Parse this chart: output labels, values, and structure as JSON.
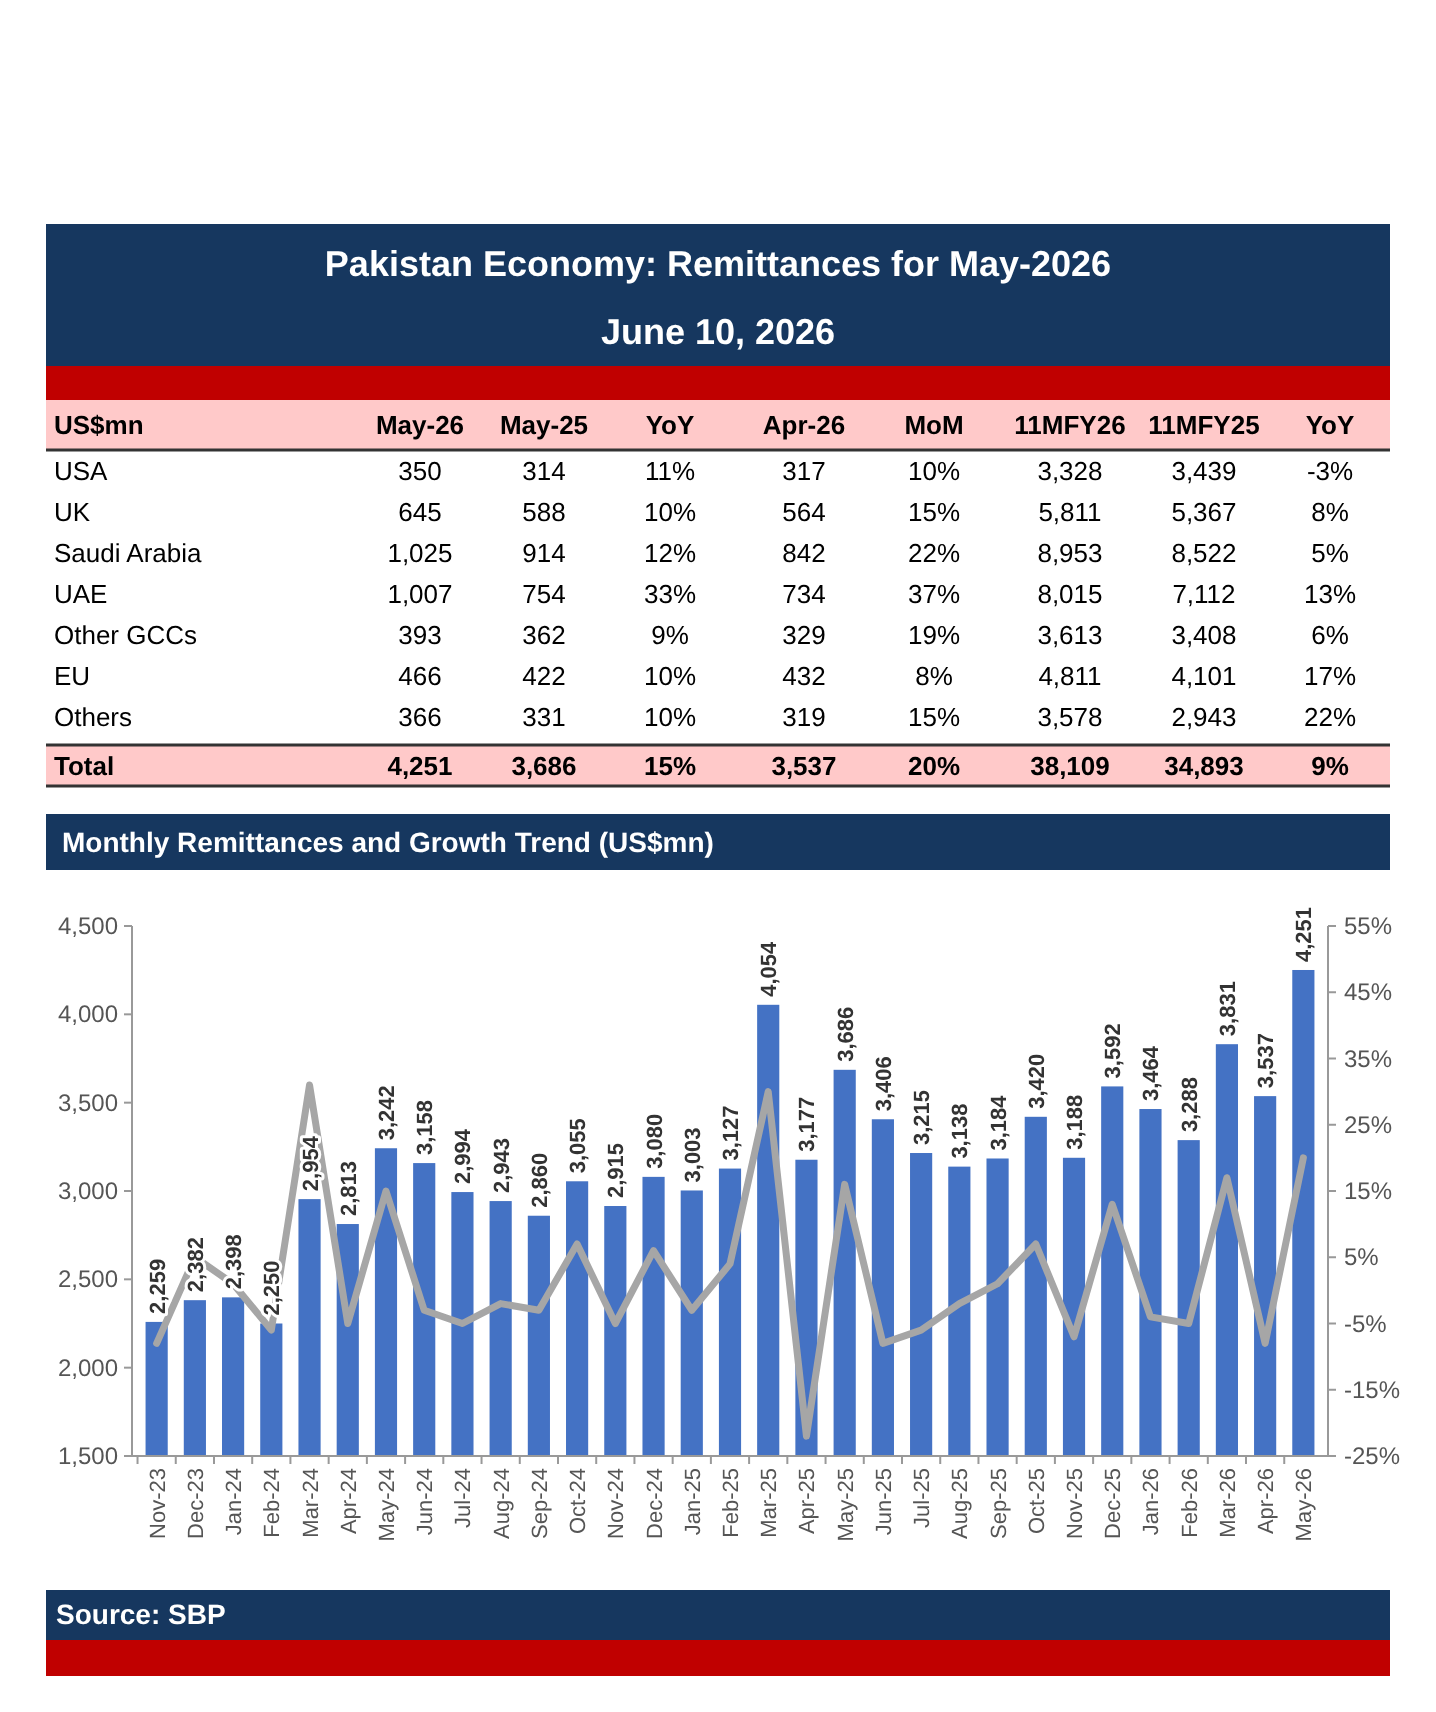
{
  "chart_data": [
    {
      "type": "heatmap",
      "title": "Pakistan Economy: Remittances for May-2026",
      "subtitle": "June 10, 2026",
      "ylabel": "US$mn",
      "categories": [
        "May-26",
        "May-25",
        "YoY",
        "Apr-26",
        "MoM",
        "11MFY26",
        "11MFY25",
        "YoY"
      ],
      "y_categories": [
        "USA",
        "UK",
        "Saudi Arabia",
        "UAE",
        "Other GCCs",
        "EU",
        "Others",
        "Total"
      ],
      "cells": [
        [
          350,
          314,
          11,
          317,
          10,
          3328,
          3439,
          -3
        ],
        [
          645,
          588,
          10,
          564,
          15,
          5811,
          5367,
          8
        ],
        [
          1025,
          914,
          12,
          842,
          22,
          8953,
          8522,
          5
        ],
        [
          1007,
          754,
          33,
          734,
          37,
          8015,
          7112,
          13
        ],
        [
          393,
          362,
          9,
          329,
          19,
          3613,
          3408,
          6
        ],
        [
          466,
          422,
          10,
          432,
          8,
          4811,
          4101,
          17
        ],
        [
          366,
          331,
          10,
          319,
          15,
          3578,
          2943,
          22
        ],
        [
          4251,
          3686,
          15,
          3537,
          20,
          38109,
          34893,
          9
        ]
      ],
      "cell_labels": [
        [
          "350",
          "314",
          "11%",
          "317",
          "10%",
          "3,328",
          "3,439",
          "-3%"
        ],
        [
          "645",
          "588",
          "10%",
          "564",
          "15%",
          "5,811",
          "5,367",
          "8%"
        ],
        [
          "1,025",
          "914",
          "12%",
          "842",
          "22%",
          "8,953",
          "8,522",
          "5%"
        ],
        [
          "1,007",
          "754",
          "33%",
          "734",
          "37%",
          "8,015",
          "7,112",
          "13%"
        ],
        [
          "393",
          "362",
          "9%",
          "329",
          "19%",
          "3,613",
          "3,408",
          "6%"
        ],
        [
          "466",
          "422",
          "10%",
          "432",
          "8%",
          "4,811",
          "4,101",
          "17%"
        ],
        [
          "366",
          "331",
          "10%",
          "319",
          "15%",
          "3,578",
          "2,943",
          "22%"
        ],
        [
          "4,251",
          "3,686",
          "15%",
          "3,537",
          "20%",
          "38,109",
          "34,893",
          "9%"
        ]
      ]
    },
    {
      "type": "bar",
      "title": "Monthly Remittances and Growth Trend (US$mn)",
      "categories": [
        "Nov-23",
        "Dec-23",
        "Jan-24",
        "Feb-24",
        "Mar-24",
        "Apr-24",
        "May-24",
        "Jun-24",
        "Jul-24",
        "Aug-24",
        "Sep-24",
        "Oct-24",
        "Nov-24",
        "Dec-24",
        "Jan-25",
        "Feb-25",
        "Mar-25",
        "Apr-25",
        "May-25",
        "Jun-25",
        "Jul-25",
        "Aug-25",
        "Sep-25",
        "Oct-25",
        "Nov-25",
        "Dec-25",
        "Jan-26",
        "Feb-26",
        "Mar-26",
        "Apr-26",
        "May-26"
      ],
      "series": [
        {
          "type": "bar",
          "color": "#4472c4",
          "values": [
            2259,
            2382,
            2398,
            2250,
            2954,
            2813,
            3242,
            3158,
            2994,
            2943,
            2860,
            3055,
            2915,
            3080,
            3003,
            3127,
            4054,
            3177,
            3686,
            3406,
            3215,
            3138,
            3184,
            3420,
            3188,
            3592,
            3464,
            3288,
            3831,
            3537,
            4251
          ],
          "value_labels": [
            "2,259",
            "2,382",
            "2,398",
            "2,250",
            "2,954",
            "2,813",
            "3,242",
            "3,158",
            "2,994",
            "2,943",
            "2,860",
            "3,055",
            "2,915",
            "3,080",
            "3,003",
            "3,127",
            "4,054",
            "3,177",
            "3,686",
            "3,406",
            "3,215",
            "3,138",
            "3,184",
            "3,420",
            "3,188",
            "3,592",
            "3,464",
            "3,288",
            "3,831",
            "3,537",
            "4,251"
          ]
        },
        {
          "type": "line",
          "axis": "y2",
          "color": "#a6a6a6",
          "values": [
            -8,
            5,
            1,
            -6,
            31,
            -5,
            15,
            -3,
            -5,
            -2,
            -3,
            7,
            -5,
            6,
            -3,
            4,
            30,
            -22,
            16,
            -8,
            -6,
            -2,
            1,
            7,
            -7,
            13,
            -4,
            -5,
            17,
            -8,
            20
          ]
        }
      ],
      "ylim": [
        1500,
        4500
      ],
      "yticks": [
        {
          "value": 1500,
          "label": "1,500"
        },
        {
          "value": 2000,
          "label": "2,000"
        },
        {
          "value": 2500,
          "label": "2,500"
        },
        {
          "value": 3000,
          "label": "3,000"
        },
        {
          "value": 3500,
          "label": "3,500"
        },
        {
          "value": 4000,
          "label": "4,000"
        },
        {
          "value": 4500,
          "label": "4,500"
        }
      ],
      "y2lim": [
        -25,
        55
      ],
      "y2ticks": [
        {
          "value": -25,
          "label": "-25%"
        },
        {
          "value": -15,
          "label": "-15%"
        },
        {
          "value": -5,
          "label": "-5%"
        },
        {
          "value": 5,
          "label": "5%"
        },
        {
          "value": 15,
          "label": "15%"
        },
        {
          "value": 25,
          "label": "25%"
        },
        {
          "value": 35,
          "label": "35%"
        },
        {
          "value": 45,
          "label": "45%"
        },
        {
          "value": 55,
          "label": "55%"
        }
      ],
      "annotations": [
        "Source: SBP"
      ]
    }
  ]
}
